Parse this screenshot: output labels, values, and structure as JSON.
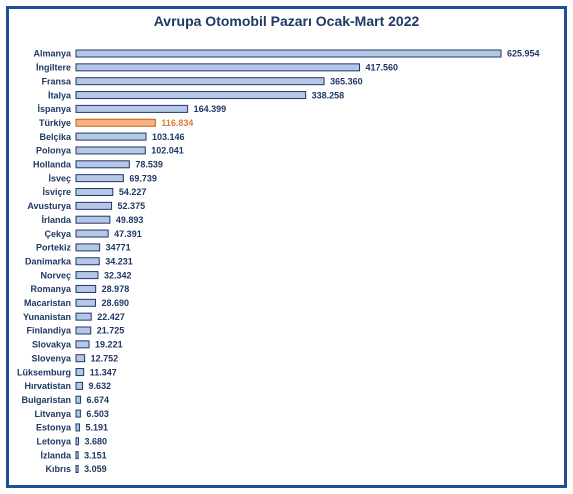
{
  "colors": {
    "frame": "#1f4e9a",
    "bar_fill": "#b4c7e7",
    "bar_stroke": "#1f3864",
    "highlight_fill": "#f4b183",
    "highlight_stroke": "#c55a11",
    "highlight_text": "#e07b39",
    "text": "#1f3864"
  },
  "chart_data": {
    "type": "bar",
    "orientation": "horizontal",
    "title": "Avrupa Otomobil Pazarı Ocak-Mart 2022",
    "xlabel": "",
    "ylabel": "",
    "grid": false,
    "legend": "none",
    "xlim": [
      0,
      625954
    ],
    "highlight": "Türkiye",
    "categories": [
      "Almanya",
      "İngiltere",
      "Fransa",
      "İtalya",
      "İspanya",
      "Türkiye",
      "Belçika",
      "Polonya",
      "Hollanda",
      "İsveç",
      "İsviçre",
      "Avusturya",
      "İrlanda",
      "Çekya",
      "Portekiz",
      "Danimarka",
      "Norveç",
      "Romanya",
      "Macaristan",
      "Yunanistan",
      "Finlandiya",
      "Slovakya",
      "Slovenya",
      "Lüksemburg",
      "Hırvatistan",
      "Bulgaristan",
      "Litvanya",
      "Estonya",
      "Letonya",
      "İzlanda",
      "Kıbrıs"
    ],
    "values": [
      625954,
      417560,
      365360,
      338258,
      164399,
      116834,
      103146,
      102041,
      78539,
      69739,
      54227,
      52375,
      49893,
      47391,
      34771,
      34231,
      32342,
      28978,
      28690,
      22427,
      21725,
      19221,
      12752,
      11347,
      9632,
      6674,
      6503,
      5191,
      3680,
      3151,
      3059
    ],
    "value_labels": [
      "625.954",
      "417.560",
      "365.360",
      "338.258",
      "164.399",
      "116.834",
      "103.146",
      "102.041",
      "78.539",
      "69.739",
      "54.227",
      "52.375",
      "49.893",
      "47.391",
      "34771",
      "34.231",
      "32.342",
      "28.978",
      "28.690",
      "22.427",
      "21.725",
      "19.221",
      "12.752",
      "11.347",
      "9.632",
      "6.674",
      "6.503",
      "5.191",
      "3.680",
      "3.151",
      "3.059"
    ]
  }
}
